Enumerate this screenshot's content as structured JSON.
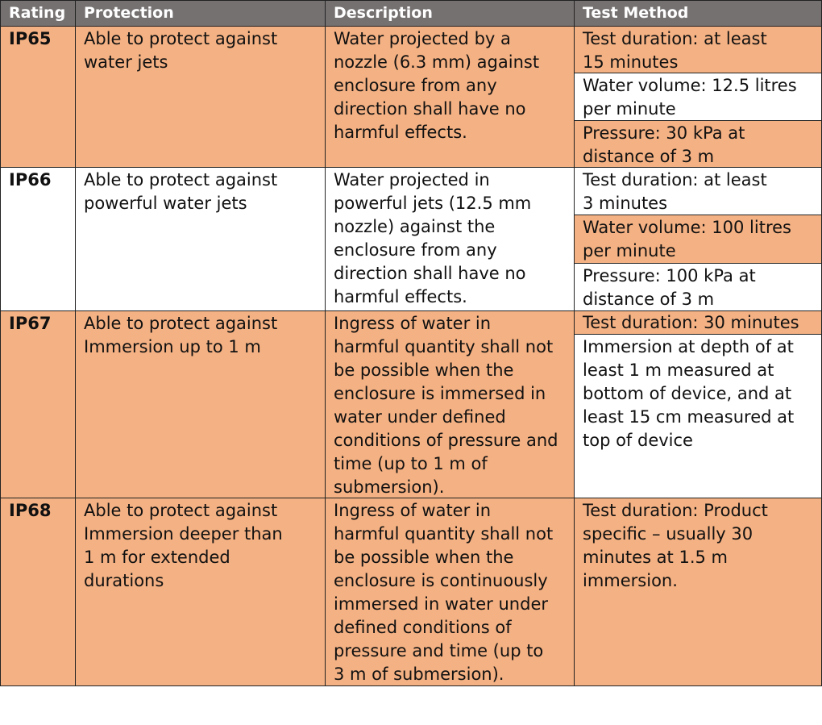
{
  "colors": {
    "header": "#767171",
    "highlight": "#F4B183",
    "plain": "#FFFFFF"
  },
  "headers": [
    "Rating",
    "Protection",
    "Description",
    "Test Method"
  ],
  "rows": [
    {
      "rating": "IP65",
      "protection": "Able to protect against\nwater jets",
      "description": "Water projected by a\nnozzle (6.3 mm) against\nenclosure from any\ndirection shall have no\nharmful effects.",
      "tests": [
        "Test duration: at least\n15 minutes",
        "Water volume: 12.5 litres\nper minute",
        "Pressure: 30 kPa at\ndistance of 3 m"
      ]
    },
    {
      "rating": "IP66",
      "protection": "Able to protect against\npowerful water jets",
      "description": "Water projected in\npowerful jets (12.5 mm\nnozzle) against the\nenclosure from any\ndirection shall have no\nharmful effects.",
      "tests": [
        "Test duration: at least\n3 minutes",
        "Water volume: 100 litres\nper minute",
        "Pressure: 100 kPa at\ndistance of 3 m"
      ]
    },
    {
      "rating": "IP67",
      "protection": "Able to protect against\nImmersion up to 1 m",
      "description": "Ingress of water in\nharmful quantity shall not\nbe possible when the\nenclosure is immersed in\nwater under defined\nconditions of pressure and\ntime (up to 1 m of\nsubmersion).",
      "tests": [
        "Test duration: 30 minutes",
        "Immersion at depth of at\nleast 1 m measured at\nbottom of device, and at\nleast 15 cm measured at\ntop of device"
      ]
    },
    {
      "rating": "IP68",
      "protection": "Able to protect against\nImmersion deeper than\n1 m for extended\ndurations",
      "description": "Ingress of water in\nharmful quantity shall not\nbe possible when the\nenclosure is continuously\nimmersed in water under\ndefined conditions of\npressure and time (up to\n3 m of submersion).",
      "tests": [
        "Test duration: Product\nspecific – usually 30\nminutes at 1.5 m\nimmersion."
      ]
    }
  ]
}
